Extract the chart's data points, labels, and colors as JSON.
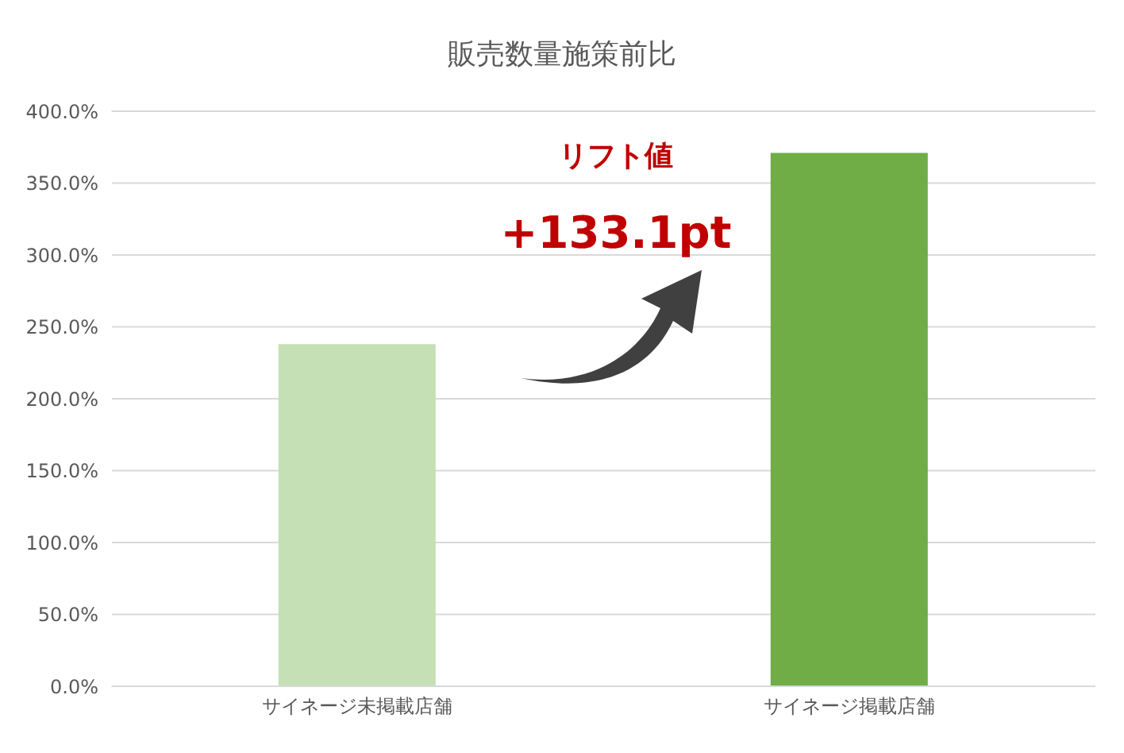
{
  "chart_data": {
    "type": "bar",
    "title": "販売数量施策前比",
    "categories": [
      "サイネージ未掲載店舗",
      "サイネージ掲載店舗"
    ],
    "values": [
      238,
      371
    ],
    "colors": [
      "#c5e0b4",
      "#70ad47"
    ],
    "ylim": [
      0,
      400
    ],
    "yticks": [
      {
        "value": 0,
        "label": "0.0%"
      },
      {
        "value": 50,
        "label": "50.0%"
      },
      {
        "value": 100,
        "label": "100.0%"
      },
      {
        "value": 150,
        "label": "150.0%"
      },
      {
        "value": 200,
        "label": "200.0%"
      },
      {
        "value": 250,
        "label": "250.0%"
      },
      {
        "value": 300,
        "label": "300.0%"
      },
      {
        "value": 350,
        "label": "350.0%"
      },
      {
        "value": 400,
        "label": "400.0%"
      }
    ],
    "grid": "y",
    "annotations": [
      "リフト値",
      "+133.1pt"
    ]
  }
}
